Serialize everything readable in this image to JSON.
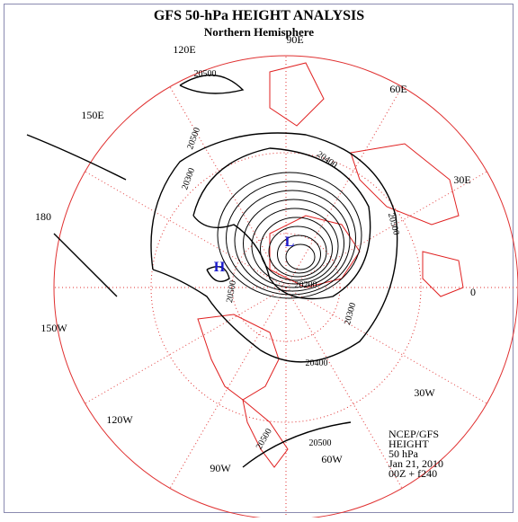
{
  "header": {
    "title": "GFS 50-hPa HEIGHT ANALYSIS",
    "subtitle": "Northern Hemisphere"
  },
  "longitude_labels": [
    "90E",
    "60E",
    "30E",
    "0",
    "30W",
    "60W",
    "90W",
    "120W",
    "150W",
    "180",
    "150E",
    "120E"
  ],
  "contour_labels": [
    "20500",
    "20500",
    "20400",
    "20500",
    "20300",
    "20400",
    "20300",
    "20500",
    "20200",
    "20500",
    "20500"
  ],
  "centers": {
    "high": "H",
    "low": "L"
  },
  "info": [
    "NCEP/GFS",
    "HEIGHT",
    "50 hPa",
    "Jan 21, 2010",
    "00Z + f240"
  ]
}
